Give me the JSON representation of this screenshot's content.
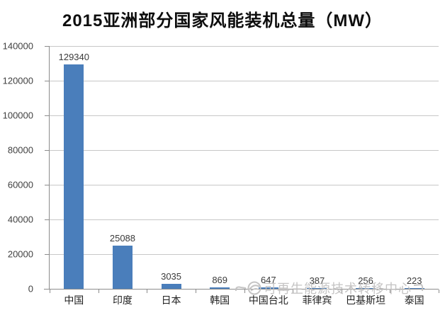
{
  "chart": {
    "title": "2015亚洲部分国家风能装机总量（MW）",
    "watermark": {
      "icon": "swirl-logo-icon",
      "text": "可再生能源技术转移中心"
    },
    "colors": {
      "bar": "#4a7ebb",
      "gridline": "#c7c7c7",
      "axis": "#8c8c8c",
      "title": "#0d0d0d",
      "tick_label": "#404040",
      "watermark": "#c2c1c1",
      "background": "#ffffff"
    }
  },
  "chart_data": {
    "type": "bar",
    "title": "2015亚洲部分国家风能装机总量（MW）",
    "categories": [
      "中国",
      "印度",
      "日本",
      "韩国",
      "中国台北",
      "菲律宾",
      "巴基斯坦",
      "泰国"
    ],
    "values": [
      129340,
      25088,
      3035,
      869,
      647,
      387,
      256,
      223
    ],
    "data_labels": [
      "129340",
      "25088",
      "3035",
      "869",
      "647",
      "387",
      "256",
      "223"
    ],
    "xlabel": "",
    "ylabel": "",
    "ylim": [
      0,
      140000
    ],
    "yticks": [
      0,
      20000,
      40000,
      60000,
      80000,
      100000,
      120000,
      140000
    ],
    "ytick_labels": [
      "0",
      "20000",
      "40000",
      "60000",
      "80000",
      "100000",
      "120000",
      "140000"
    ],
    "grid": true,
    "legend": false,
    "legend_position": "none"
  }
}
